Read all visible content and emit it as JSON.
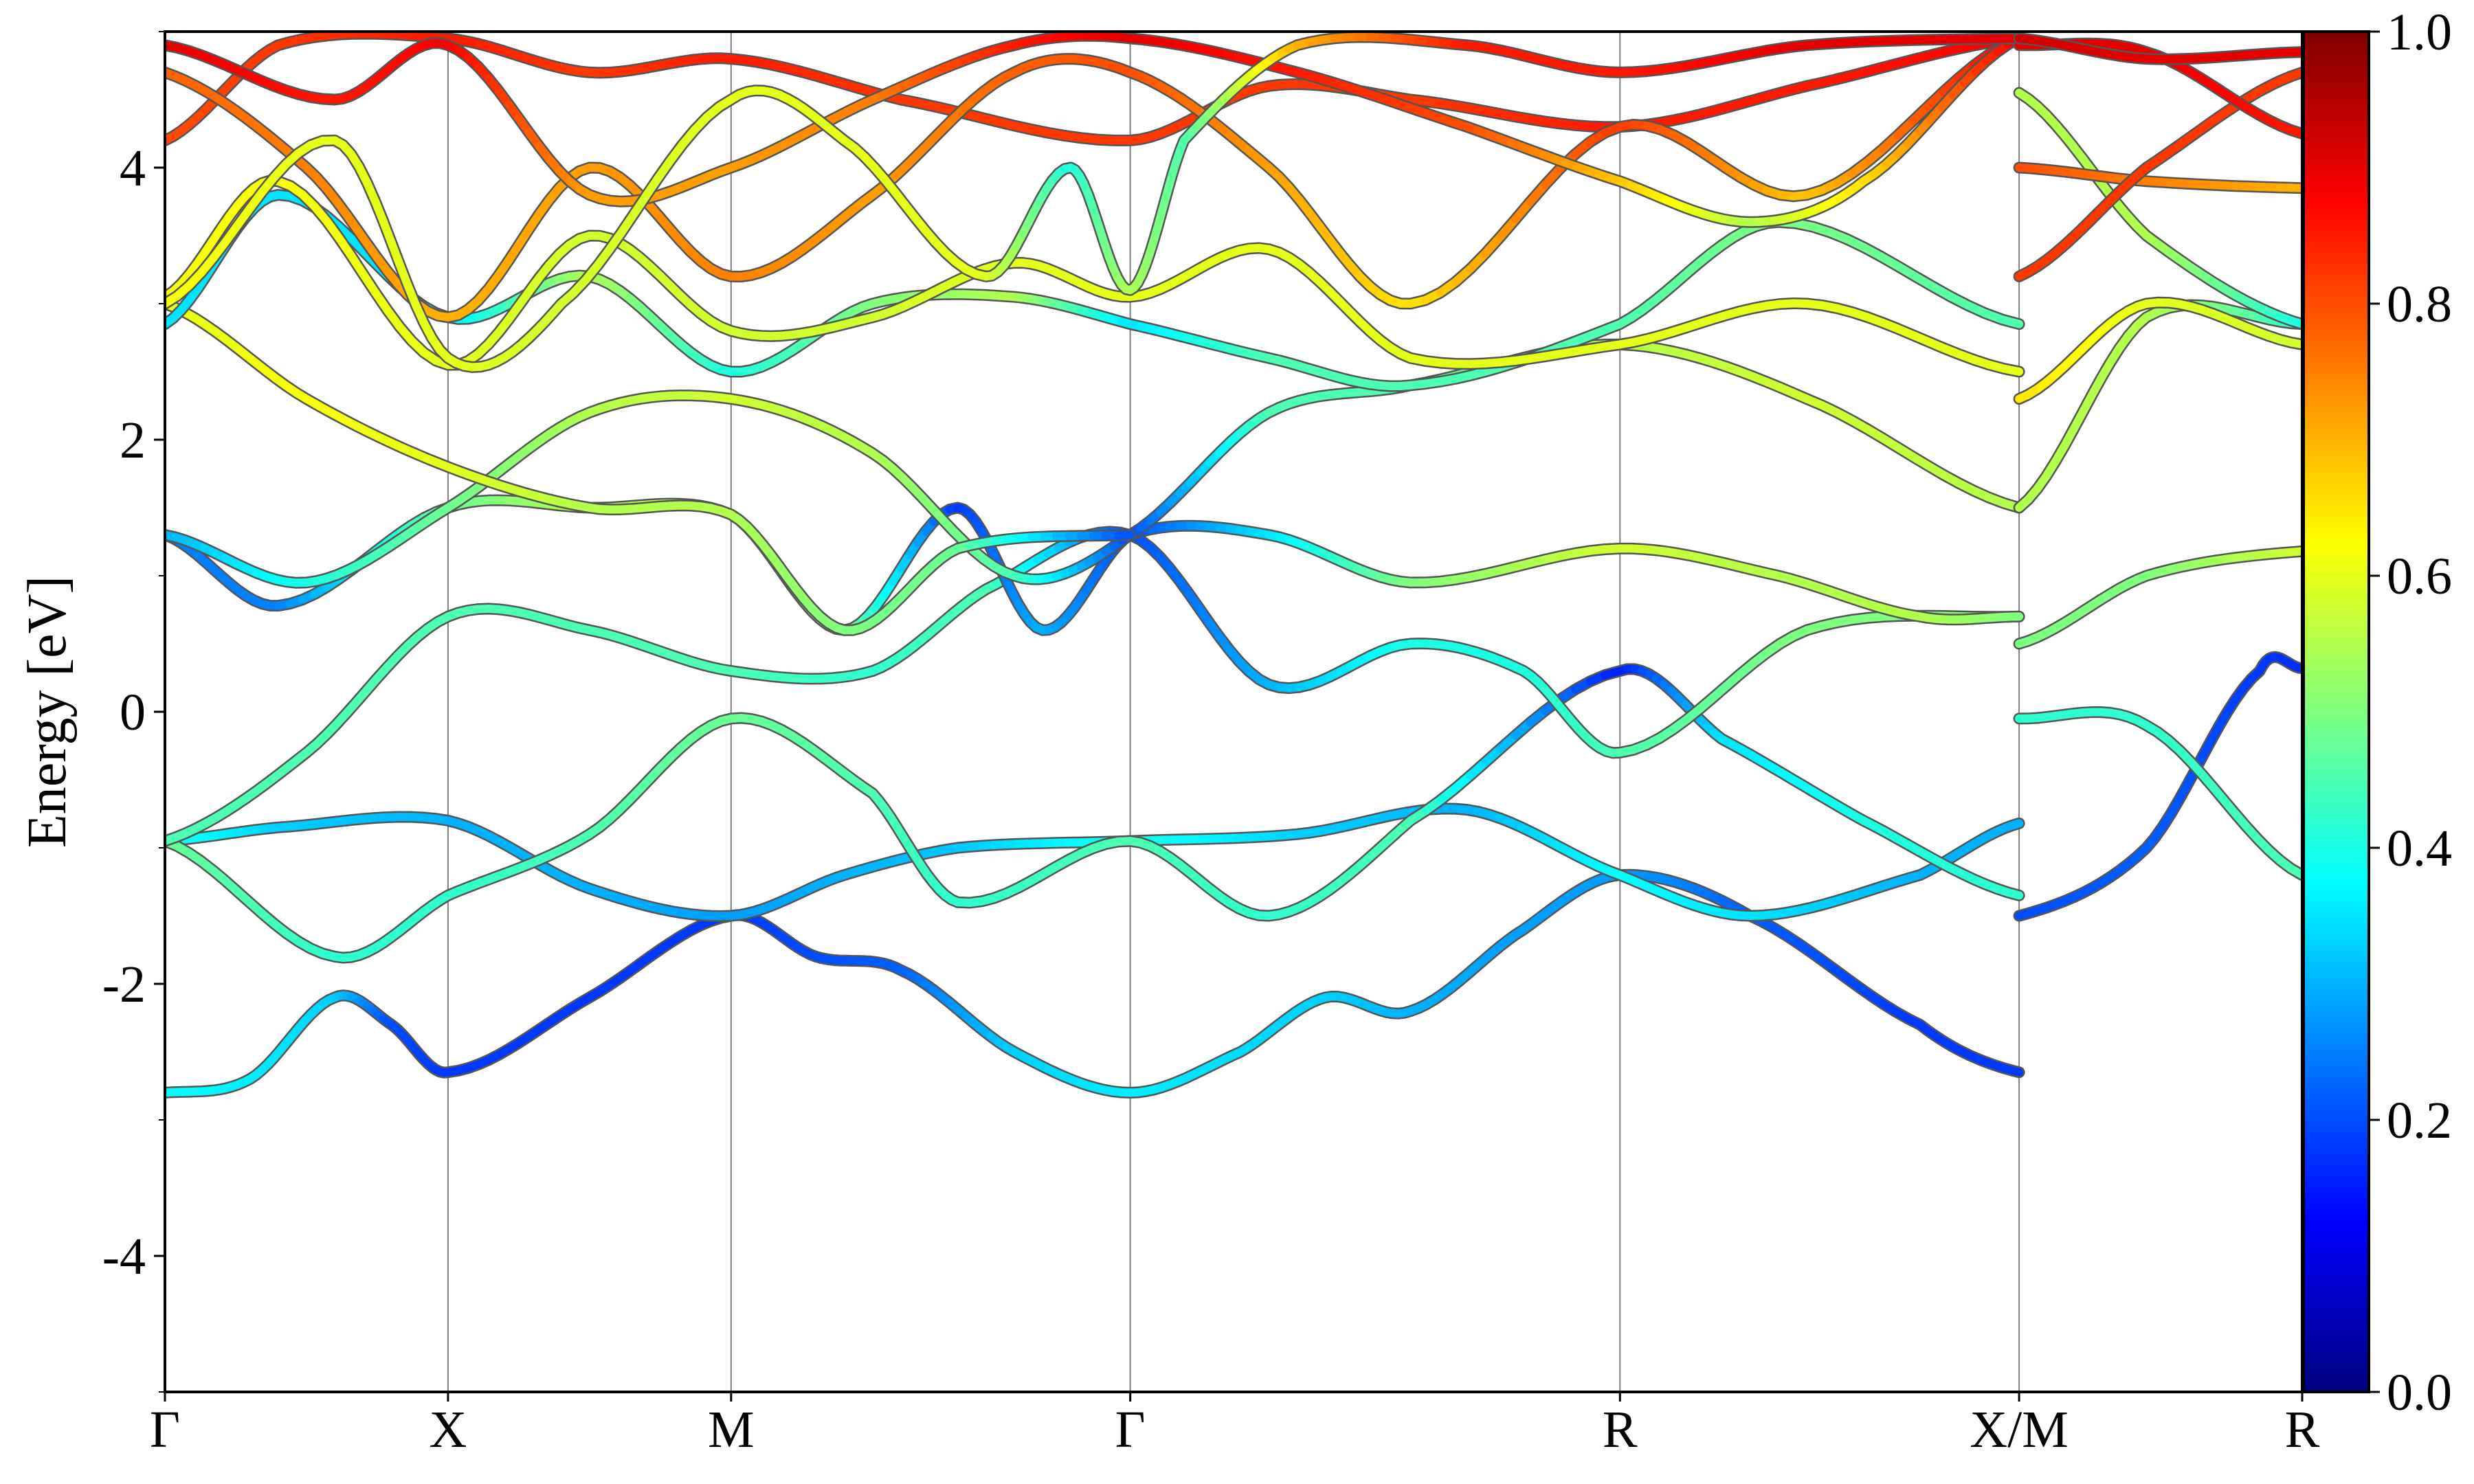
{
  "chart_data": {
    "type": "line",
    "title": "",
    "xlabel": "",
    "ylabel": "Energy [eV]",
    "ylim": [
      -5,
      5
    ],
    "yticks": [
      -4,
      -2,
      0,
      2,
      4
    ],
    "ytick_labels": [
      "-4",
      "-2",
      "0",
      "2",
      "4"
    ],
    "xlim": [
      0,
      7.55
    ],
    "kpoints": [
      {
        "label": "Γ",
        "x": 0
      },
      {
        "label": "X",
        "x": 1.0
      },
      {
        "label": "M",
        "x": 2.0
      },
      {
        "label": "Γ",
        "x": 3.41
      },
      {
        "label": "R",
        "x": 5.14
      },
      {
        "label": "X/M",
        "x": 6.55
      },
      {
        "label": "R",
        "x": 7.55
      }
    ],
    "colorbar": {
      "colormap": "jet",
      "range": [
        0,
        1
      ],
      "ticks": [
        0,
        0.2,
        0.4,
        0.6,
        0.8,
        1.0
      ],
      "tick_labels": [
        "0.0",
        "0.2",
        "0.4",
        "0.6",
        "0.8",
        "1.0"
      ]
    },
    "colormap_stops": [
      "#00007f",
      "#0000ff",
      "#007fff",
      "#00ffff",
      "#7fff7f",
      "#ffff00",
      "#ff7f00",
      "#ff0000",
      "#7f0000"
    ],
    "series": [
      {
        "points": [
          [
            0,
            -2.8,
            0.38
          ],
          [
            0.3,
            -2.7,
            0.36
          ],
          [
            0.6,
            -2.1,
            0.33
          ],
          [
            0.8,
            -2.3,
            0.2
          ],
          [
            1.0,
            -2.65,
            0.18
          ],
          [
            1.5,
            -2.1,
            0.18
          ],
          [
            2.0,
            -1.5,
            0.18
          ],
          [
            2.3,
            -1.8,
            0.2
          ],
          [
            2.6,
            -1.9,
            0.22
          ],
          [
            3.0,
            -2.5,
            0.33
          ],
          [
            3.41,
            -2.8,
            0.36
          ],
          [
            3.8,
            -2.5,
            0.34
          ],
          [
            4.1,
            -2.1,
            0.33
          ],
          [
            4.4,
            -2.2,
            0.3
          ],
          [
            4.8,
            -1.6,
            0.28
          ],
          [
            5.14,
            -1.2,
            0.28
          ],
          [
            5.6,
            -1.5,
            0.22
          ],
          [
            6.2,
            -2.3,
            0.18
          ],
          [
            6.55,
            -2.65,
            0.18
          ]
        ]
      },
      {
        "points": [
          [
            6.55,
            -1.5,
            0.2
          ],
          [
            7.0,
            -1.0,
            0.22
          ],
          [
            7.4,
            0.3,
            0.18
          ],
          [
            7.55,
            0.32,
            0.17
          ]
        ]
      },
      {
        "points": [
          [
            0,
            -0.95,
            0.4
          ],
          [
            0.4,
            -0.85,
            0.33
          ],
          [
            1.0,
            -0.8,
            0.3
          ],
          [
            1.5,
            -1.3,
            0.3
          ],
          [
            2.0,
            -1.5,
            0.28
          ],
          [
            2.4,
            -1.2,
            0.3
          ],
          [
            2.8,
            -1.0,
            0.32
          ],
          [
            3.41,
            -0.95,
            0.4
          ],
          [
            4.0,
            -0.9,
            0.33
          ],
          [
            4.6,
            -0.72,
            0.3
          ],
          [
            5.14,
            -1.2,
            0.38
          ],
          [
            5.6,
            -1.5,
            0.35
          ],
          [
            6.2,
            -1.2,
            0.3
          ],
          [
            6.55,
            -0.82,
            0.3
          ]
        ]
      },
      {
        "points": [
          [
            0,
            -0.95,
            0.48
          ],
          [
            0.6,
            -1.8,
            0.42
          ],
          [
            1.0,
            -1.35,
            0.42
          ],
          [
            1.5,
            -0.9,
            0.45
          ],
          [
            2.0,
            -0.05,
            0.48
          ],
          [
            2.5,
            -0.6,
            0.45
          ],
          [
            2.8,
            -1.4,
            0.42
          ],
          [
            3.41,
            -0.95,
            0.45
          ],
          [
            3.9,
            -1.5,
            0.42
          ],
          [
            4.4,
            -0.8,
            0.45
          ],
          [
            5.14,
            0.3,
            0.15
          ],
          [
            5.5,
            -0.2,
            0.35
          ],
          [
            6.0,
            -0.8,
            0.4
          ],
          [
            6.55,
            -1.35,
            0.42
          ]
        ]
      },
      {
        "points": [
          [
            6.55,
            -0.05,
            0.42
          ],
          [
            7.0,
            -0.1,
            0.42
          ],
          [
            7.55,
            -1.2,
            0.45
          ]
        ]
      },
      {
        "points": [
          [
            0,
            -0.95,
            0.45
          ],
          [
            0.5,
            -0.3,
            0.45
          ],
          [
            1.0,
            0.7,
            0.45
          ],
          [
            1.5,
            0.6,
            0.45
          ],
          [
            2.0,
            0.3,
            0.45
          ],
          [
            2.5,
            0.3,
            0.42
          ],
          [
            2.9,
            0.9,
            0.45
          ],
          [
            3.41,
            1.3,
            0.2
          ],
          [
            3.9,
            0.2,
            0.3
          ],
          [
            4.4,
            0.5,
            0.4
          ],
          [
            4.8,
            0.3,
            0.4
          ],
          [
            5.14,
            -0.3,
            0.45
          ],
          [
            5.8,
            0.6,
            0.5
          ],
          [
            6.55,
            0.7,
            0.5
          ]
        ]
      },
      {
        "points": [
          [
            0,
            1.3,
            0.25
          ],
          [
            0.4,
            0.78,
            0.25
          ],
          [
            1.0,
            1.5,
            0.48
          ],
          [
            1.5,
            1.5,
            0.55
          ],
          [
            2.0,
            1.45,
            0.55
          ],
          [
            2.4,
            0.6,
            0.5
          ],
          [
            2.8,
            1.5,
            0.18
          ],
          [
            3.1,
            0.6,
            0.3
          ],
          [
            3.41,
            1.3,
            0.2
          ],
          [
            3.9,
            1.3,
            0.35
          ],
          [
            4.4,
            0.95,
            0.5
          ],
          [
            5.14,
            1.2,
            0.58
          ],
          [
            5.7,
            1.0,
            0.55
          ],
          [
            6.2,
            0.7,
            0.55
          ],
          [
            6.55,
            0.7,
            0.5
          ]
        ]
      },
      {
        "points": [
          [
            6.55,
            0.5,
            0.5
          ],
          [
            7.0,
            1.0,
            0.5
          ],
          [
            7.55,
            1.18,
            0.58
          ]
        ]
      },
      {
        "points": [
          [
            0,
            1.3,
            0.3
          ],
          [
            0.5,
            0.95,
            0.4
          ],
          [
            1.0,
            1.5,
            0.48
          ],
          [
            1.5,
            2.2,
            0.55
          ],
          [
            2.0,
            2.3,
            0.58
          ],
          [
            2.5,
            1.9,
            0.55
          ],
          [
            3.0,
            1.0,
            0.45
          ],
          [
            3.41,
            1.3,
            0.2
          ],
          [
            3.9,
            2.2,
            0.45
          ],
          [
            4.4,
            2.4,
            0.45
          ],
          [
            5.14,
            2.7,
            0.55
          ],
          [
            5.8,
            2.3,
            0.58
          ],
          [
            6.55,
            1.5,
            0.55
          ]
        ]
      },
      {
        "points": [
          [
            6.55,
            1.5,
            0.55
          ],
          [
            7.0,
            2.9,
            0.55
          ],
          [
            7.55,
            2.85,
            0.42
          ]
        ]
      },
      {
        "points": [
          [
            0,
            3.0,
            0.6
          ],
          [
            0.5,
            2.3,
            0.62
          ],
          [
            1.0,
            1.8,
            0.6
          ],
          [
            1.5,
            1.5,
            0.55
          ],
          [
            2.0,
            1.45,
            0.55
          ],
          [
            2.4,
            0.6,
            0.5
          ],
          [
            2.8,
            1.2,
            0.48
          ],
          [
            3.41,
            1.3,
            0.2
          ]
        ]
      },
      {
        "points": [
          [
            0,
            2.85,
            0.35
          ],
          [
            0.4,
            3.8,
            0.35
          ],
          [
            1.0,
            2.9,
            0.35
          ],
          [
            1.5,
            3.2,
            0.55
          ],
          [
            2.0,
            2.5,
            0.4
          ],
          [
            2.5,
            3.0,
            0.5
          ],
          [
            3.0,
            3.05,
            0.55
          ],
          [
            3.41,
            2.85,
            0.35
          ],
          [
            3.9,
            2.6,
            0.45
          ],
          [
            4.4,
            2.4,
            0.45
          ],
          [
            5.14,
            2.85,
            0.45
          ],
          [
            5.7,
            3.6,
            0.5
          ],
          [
            6.55,
            2.85,
            0.45
          ]
        ]
      },
      {
        "points": [
          [
            0,
            3.05,
            0.62
          ],
          [
            0.4,
            3.9,
            0.62
          ],
          [
            1.0,
            2.55,
            0.6
          ],
          [
            1.5,
            3.5,
            0.58
          ],
          [
            2.0,
            2.8,
            0.58
          ],
          [
            2.5,
            2.9,
            0.58
          ],
          [
            3.0,
            3.3,
            0.6
          ],
          [
            3.41,
            3.05,
            0.6
          ],
          [
            3.9,
            3.4,
            0.6
          ],
          [
            4.4,
            2.6,
            0.6
          ],
          [
            5.14,
            2.7,
            0.6
          ],
          [
            5.8,
            3.0,
            0.6
          ],
          [
            6.55,
            2.5,
            0.6
          ]
        ]
      },
      {
        "points": [
          [
            6.55,
            2.3,
            0.65
          ],
          [
            7.0,
            3.0,
            0.6
          ],
          [
            7.55,
            2.7,
            0.58
          ]
        ]
      },
      {
        "points": [
          [
            0,
            4.2,
            0.8
          ],
          [
            0.4,
            4.9,
            0.82
          ],
          [
            1.0,
            4.95,
            0.85
          ],
          [
            1.5,
            4.7,
            0.82
          ],
          [
            2.0,
            4.8,
            0.85
          ],
          [
            2.6,
            4.5,
            0.82
          ],
          [
            3.41,
            4.2,
            0.82
          ],
          [
            3.9,
            4.6,
            0.82
          ],
          [
            4.4,
            4.5,
            0.82
          ],
          [
            5.14,
            4.3,
            0.85
          ],
          [
            5.8,
            4.6,
            0.85
          ],
          [
            6.55,
            4.95,
            0.88
          ]
        ]
      },
      {
        "points": [
          [
            0,
            4.7,
            0.78
          ],
          [
            0.5,
            4.0,
            0.75
          ],
          [
            1.0,
            2.9,
            0.7
          ],
          [
            1.5,
            4.0,
            0.72
          ],
          [
            2.0,
            3.2,
            0.75
          ],
          [
            2.5,
            3.8,
            0.72
          ],
          [
            3.0,
            4.7,
            0.78
          ],
          [
            3.41,
            4.7,
            0.8
          ],
          [
            3.9,
            4.0,
            0.72
          ],
          [
            4.4,
            3.0,
            0.65
          ],
          [
            5.14,
            4.3,
            0.82
          ],
          [
            5.8,
            3.8,
            0.68
          ],
          [
            6.55,
            4.95,
            0.88
          ]
        ]
      },
      {
        "points": [
          [
            0,
            4.9,
            0.9
          ],
          [
            0.6,
            4.5,
            0.85
          ],
          [
            1.0,
            4.9,
            0.88
          ],
          [
            1.5,
            3.8,
            0.72
          ],
          [
            2.0,
            4.0,
            0.72
          ],
          [
            2.5,
            4.5,
            0.75
          ],
          [
            3.0,
            4.9,
            0.85
          ],
          [
            3.41,
            4.95,
            0.9
          ],
          [
            4.0,
            4.7,
            0.85
          ],
          [
            4.6,
            4.3,
            0.8
          ],
          [
            5.14,
            3.9,
            0.68
          ],
          [
            5.6,
            3.6,
            0.55
          ],
          [
            6.0,
            3.9,
            0.65
          ],
          [
            6.55,
            4.95,
            0.88
          ]
        ]
      },
      {
        "points": [
          [
            0,
            3.0,
            0.62
          ],
          [
            0.6,
            4.2,
            0.6
          ],
          [
            1.0,
            2.6,
            0.6
          ],
          [
            1.4,
            3.0,
            0.58
          ],
          [
            2.0,
            4.5,
            0.6
          ],
          [
            2.4,
            4.2,
            0.6
          ],
          [
            2.9,
            3.2,
            0.6
          ],
          [
            3.2,
            4.0,
            0.4
          ],
          [
            3.41,
            3.1,
            0.55
          ],
          [
            3.6,
            4.2,
            0.45
          ],
          [
            4.0,
            4.9,
            0.7
          ],
          [
            4.6,
            4.9,
            0.85
          ],
          [
            5.14,
            4.7,
            0.85
          ],
          [
            5.8,
            4.9,
            0.9
          ],
          [
            6.55,
            4.95,
            0.9
          ]
        ]
      },
      {
        "points": [
          [
            6.55,
            4.55,
            0.55
          ],
          [
            7.0,
            3.5,
            0.55
          ],
          [
            7.55,
            2.85,
            0.4
          ]
        ]
      },
      {
        "points": [
          [
            6.55,
            4.0,
            0.8
          ],
          [
            7.0,
            3.9,
            0.75
          ],
          [
            7.55,
            3.85,
            0.7
          ]
        ]
      },
      {
        "points": [
          [
            6.55,
            3.2,
            0.82
          ],
          [
            7.0,
            4.0,
            0.82
          ],
          [
            7.55,
            4.7,
            0.82
          ]
        ]
      },
      {
        "points": [
          [
            6.55,
            4.9,
            0.9
          ],
          [
            7.0,
            4.85,
            0.9
          ],
          [
            7.55,
            4.25,
            0.85
          ]
        ]
      },
      {
        "points": [
          [
            6.55,
            4.95,
            0.92
          ],
          [
            7.0,
            4.8,
            0.9
          ],
          [
            7.55,
            4.85,
            0.9
          ]
        ]
      }
    ]
  }
}
